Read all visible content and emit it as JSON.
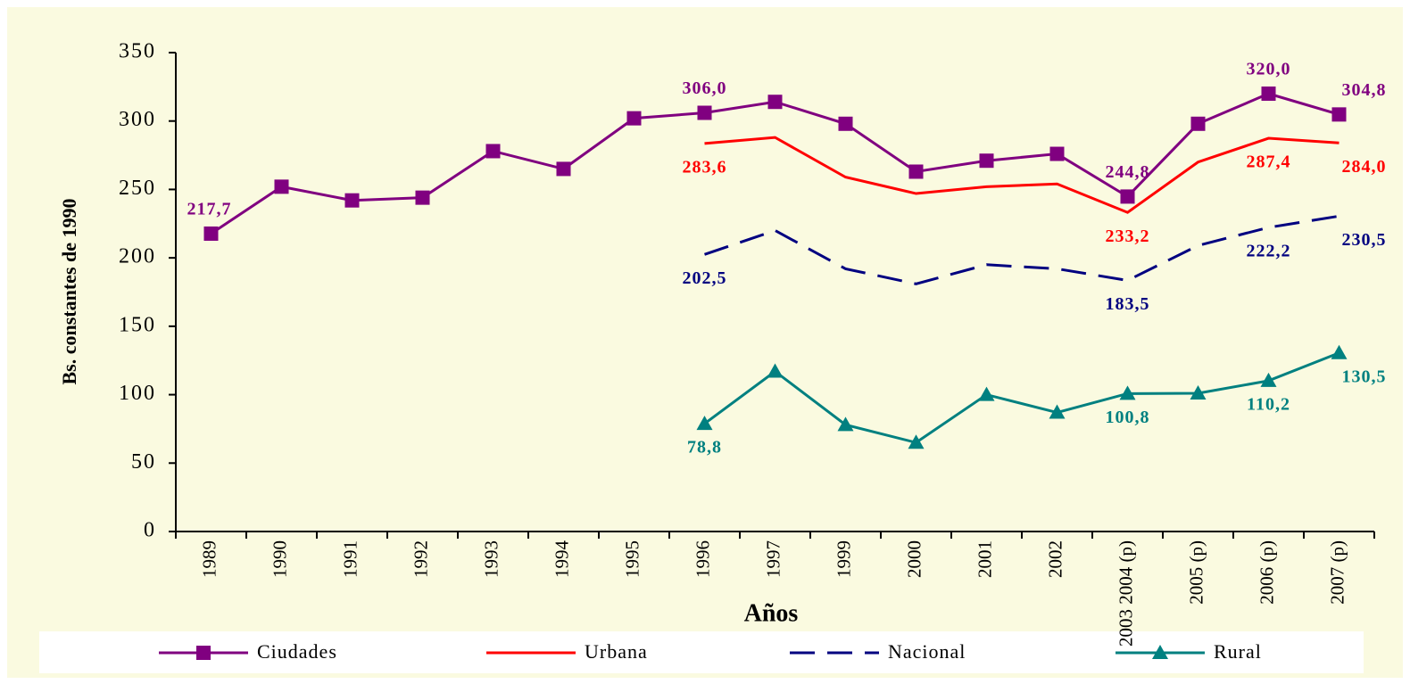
{
  "chart_data": {
    "type": "line",
    "y_label": "Bs. constantes de 1990",
    "x_label": "Años",
    "categories": [
      "1989",
      "1990",
      "1991",
      "1992",
      "1993",
      "1994",
      "1995",
      "1996",
      "1997",
      "1999",
      "2000",
      "2001",
      "2002",
      "2003 2004 (p)",
      "2005 (p)",
      "2006 (p)",
      "2007 (p)"
    ],
    "ylim": [
      0,
      350
    ],
    "yticks": [
      0,
      50,
      100,
      150,
      200,
      250,
      300,
      350
    ],
    "legend": "bottom",
    "series": [
      {
        "name": "Ciudades",
        "color": "#800080",
        "marker": "square",
        "dashed": false,
        "label_pos": "above",
        "values": [
          217.7,
          252,
          242,
          244,
          278,
          265,
          302,
          306.0,
          314,
          298,
          263,
          271,
          276,
          244.8,
          298,
          320.0,
          304.8
        ],
        "value_labels": [
          "217,7",
          null,
          null,
          null,
          null,
          null,
          null,
          "306,0",
          null,
          null,
          null,
          null,
          null,
          "244,8",
          null,
          "320,0",
          "304,8"
        ]
      },
      {
        "name": "Urbana",
        "color": "#ff0000",
        "marker": "none",
        "dashed": false,
        "label_pos": "below",
        "values": [
          null,
          null,
          null,
          null,
          null,
          null,
          null,
          283.6,
          288,
          259,
          247,
          252,
          254,
          233.2,
          270,
          287.4,
          284.0
        ],
        "value_labels": [
          null,
          null,
          null,
          null,
          null,
          null,
          null,
          "283,6",
          null,
          null,
          null,
          null,
          null,
          "233,2",
          null,
          "287,4",
          "284,0"
        ]
      },
      {
        "name": "Nacional",
        "color": "#000080",
        "marker": "none",
        "dashed": true,
        "label_pos": "below",
        "values": [
          null,
          null,
          null,
          null,
          null,
          null,
          null,
          202.5,
          220,
          192,
          181,
          195,
          192,
          183.5,
          209,
          222.2,
          230.5
        ],
        "value_labels": [
          null,
          null,
          null,
          null,
          null,
          null,
          null,
          "202,5",
          null,
          null,
          null,
          null,
          null,
          "183,5",
          null,
          "222,2",
          "230,5"
        ]
      },
      {
        "name": "Rural",
        "color": "#008080",
        "marker": "triangle",
        "dashed": false,
        "label_pos": "below",
        "values": [
          null,
          null,
          null,
          null,
          null,
          null,
          null,
          78.8,
          117,
          78,
          65,
          100,
          87,
          100.8,
          101,
          110.2,
          130.5
        ],
        "value_labels": [
          null,
          null,
          null,
          null,
          null,
          null,
          null,
          "78,8",
          null,
          null,
          null,
          null,
          null,
          "100,8",
          null,
          "110,2",
          "130,5"
        ]
      }
    ]
  }
}
